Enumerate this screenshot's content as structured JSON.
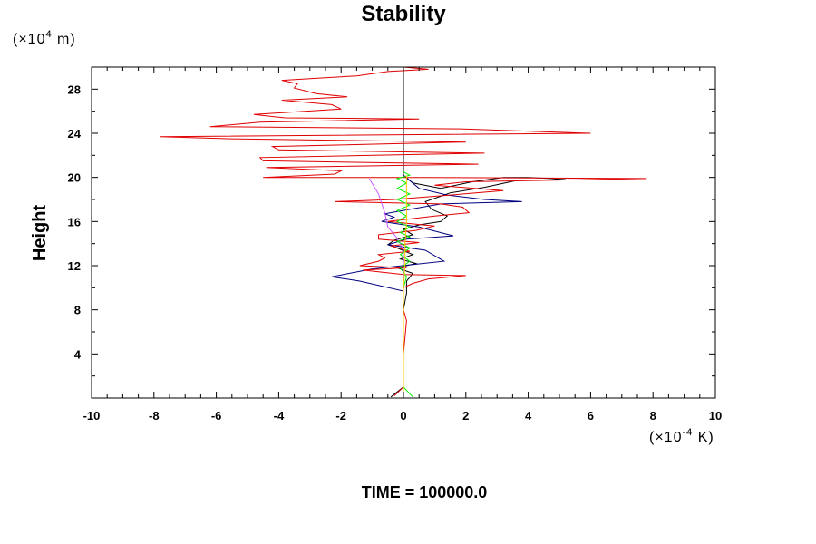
{
  "chart_data": {
    "type": "line",
    "title": "Stability",
    "ylabel": "Height",
    "y_unit_prefix": "(×10",
    "y_unit_exp": "4",
    "y_unit_suffix": " m)",
    "x_unit_prefix": "(×10",
    "x_unit_exp": "-4",
    "x_unit_suffix": " K)",
    "footer": "TIME = 100000.0",
    "xlim": [
      -10,
      10
    ],
    "ylim": [
      0,
      30
    ],
    "x_ticks": [
      -10,
      -8,
      -6,
      -4,
      -2,
      0,
      2,
      4,
      6,
      8,
      10
    ],
    "y_ticks": [
      4,
      8,
      12,
      16,
      20,
      24,
      28
    ],
    "grid": false,
    "series": [
      {
        "color": "#000000",
        "points": [
          [
            0,
            30
          ],
          [
            0,
            20.2
          ],
          [
            0.3,
            19.5
          ],
          [
            1.2,
            19
          ],
          [
            2.2,
            19.6
          ],
          [
            3.2,
            20
          ],
          [
            4.0,
            20
          ],
          [
            4.7,
            19.9
          ],
          [
            5.2,
            19.8
          ],
          [
            3.6,
            19.7
          ],
          [
            2.6,
            19.1
          ],
          [
            1.5,
            18.6
          ],
          [
            0.7,
            17.8
          ],
          [
            0.9,
            17.1
          ],
          [
            1.4,
            16.5
          ],
          [
            1.2,
            16
          ],
          [
            0.5,
            15.7
          ],
          [
            0.0,
            15.3
          ],
          [
            0.3,
            14.8
          ],
          [
            -0.3,
            14.3
          ],
          [
            -0.5,
            13.9
          ],
          [
            -0.2,
            13.6
          ],
          [
            0.3,
            13.0
          ],
          [
            -0.1,
            12.6
          ],
          [
            0.4,
            12.2
          ],
          [
            -0.2,
            11.8
          ],
          [
            0.3,
            11.3
          ],
          [
            0.1,
            10.6
          ],
          [
            0.1,
            9.5
          ],
          [
            0,
            8
          ],
          [
            0,
            4
          ],
          [
            0,
            1
          ],
          [
            -0.4,
            0.1
          ]
        ]
      },
      {
        "color": "#00007f",
        "points": [
          [
            0,
            20.2
          ],
          [
            0.5,
            19
          ],
          [
            1.4,
            18.4
          ],
          [
            2.6,
            18
          ],
          [
            3.8,
            17.8
          ],
          [
            1.2,
            17.6
          ],
          [
            0.2,
            17.1
          ],
          [
            -0.6,
            16.7
          ],
          [
            -0.3,
            16.4
          ],
          [
            -0.7,
            16.0
          ],
          [
            0.5,
            15.5
          ],
          [
            1.6,
            14.7
          ],
          [
            0.1,
            14.4
          ],
          [
            -0.5,
            13.9
          ],
          [
            0.7,
            13.4
          ],
          [
            1.3,
            12.4
          ],
          [
            0.3,
            12.1
          ],
          [
            -1.0,
            11.7
          ],
          [
            -2.3,
            11.0
          ],
          [
            -1.4,
            10.6
          ],
          [
            0,
            9.7
          ],
          [
            0,
            8
          ],
          [
            0,
            4
          ],
          [
            0,
            0.5
          ]
        ]
      },
      {
        "color": "#e00000",
        "points": [
          [
            0,
            30
          ],
          [
            0.8,
            29.8
          ],
          [
            -0.5,
            29.6
          ],
          [
            -1.5,
            29.2
          ],
          [
            -3.9,
            28.8
          ],
          [
            -3.4,
            28.5
          ],
          [
            -3.5,
            28.1
          ],
          [
            -2.8,
            27.6
          ],
          [
            -1.8,
            27.3
          ],
          [
            -3.9,
            27.0
          ],
          [
            -2.3,
            26.6
          ],
          [
            -2.0,
            26.2
          ],
          [
            -4.8,
            25.7
          ],
          [
            -3.8,
            25.4
          ],
          [
            0.5,
            25.3
          ],
          [
            -4.6,
            25.0
          ],
          [
            -6.2,
            24.6
          ],
          [
            1.8,
            24.4
          ],
          [
            6.0,
            24.0
          ],
          [
            -7.8,
            23.7
          ],
          [
            -5.5,
            23.5
          ],
          [
            2.0,
            23.2
          ],
          [
            -4.2,
            22.8
          ],
          [
            -4.0,
            22.5
          ],
          [
            2.6,
            22.2
          ],
          [
            -4.6,
            21.8
          ],
          [
            -4.5,
            21.5
          ],
          [
            2.4,
            21.2
          ],
          [
            -4.4,
            20.9
          ],
          [
            -2.0,
            20.6
          ],
          [
            -2.2,
            20.3
          ],
          [
            -4.5,
            20.0
          ],
          [
            0.8,
            20.0
          ],
          [
            7.8,
            19.9
          ],
          [
            2.0,
            19.6
          ],
          [
            1.0,
            19.3
          ],
          [
            3.2,
            18.8
          ],
          [
            1.5,
            18.4
          ],
          [
            -0.3,
            18.0
          ],
          [
            -2.2,
            17.8
          ],
          [
            1.2,
            17.6
          ],
          [
            1.9,
            17.3
          ],
          [
            2.1,
            16.8
          ],
          [
            1.0,
            16.5
          ],
          [
            -0.5,
            16.0
          ],
          [
            1.0,
            15.6
          ],
          [
            0.4,
            15.2
          ],
          [
            -0.8,
            14.8
          ],
          [
            -0.8,
            14.4
          ],
          [
            0.5,
            14.1
          ],
          [
            -0.4,
            13.8
          ],
          [
            0.2,
            13.3
          ],
          [
            -0.8,
            13.0
          ],
          [
            -0.6,
            12.7
          ],
          [
            -0.8,
            12.4
          ],
          [
            -1.4,
            12.0
          ],
          [
            0.1,
            11.8
          ],
          [
            -1.3,
            11.6
          ],
          [
            0,
            11.2
          ],
          [
            2.0,
            11.1
          ],
          [
            0.8,
            10.8
          ],
          [
            0.3,
            10.4
          ],
          [
            0.0,
            10.0
          ],
          [
            0,
            8
          ],
          [
            0.1,
            7
          ],
          [
            0,
            4
          ],
          [
            0,
            1
          ],
          [
            -0.3,
            0.2
          ]
        ]
      },
      {
        "color": "#cc55ff",
        "points": [
          [
            -1.1,
            19.9
          ],
          [
            -0.8,
            18.5
          ],
          [
            -0.6,
            16.8
          ],
          [
            -0.5,
            15.5
          ],
          [
            -0.2,
            14.5
          ],
          [
            0,
            13.5
          ],
          [
            0,
            12
          ],
          [
            0,
            8
          ],
          [
            0,
            0.5
          ]
        ]
      },
      {
        "color": "#00ee00",
        "points": [
          [
            0,
            20.5
          ],
          [
            0.2,
            20.2
          ],
          [
            -0.2,
            19.9
          ],
          [
            0.1,
            19.5
          ],
          [
            -0.2,
            19.0
          ],
          [
            0.2,
            18.5
          ],
          [
            -0.2,
            18.0
          ],
          [
            0.2,
            17.5
          ],
          [
            -0.2,
            17.0
          ],
          [
            0.1,
            16.5
          ],
          [
            -0.2,
            16.0
          ],
          [
            0.2,
            15.5
          ],
          [
            -0.1,
            15.0
          ],
          [
            0.2,
            14.6
          ],
          [
            -0.2,
            14.2
          ],
          [
            0.2,
            13.6
          ],
          [
            -0.1,
            13.0
          ],
          [
            0.2,
            12.4
          ],
          [
            -0.1,
            11.8
          ],
          [
            0.1,
            11.0
          ],
          [
            0,
            10
          ],
          [
            0,
            8
          ],
          [
            0,
            4
          ],
          [
            0,
            1
          ],
          [
            0.3,
            0.1
          ]
        ]
      },
      {
        "color": "#ffcc00",
        "points": [
          [
            0.1,
            20.2
          ],
          [
            0.1,
            18.0
          ],
          [
            0.1,
            16.0
          ],
          [
            0.05,
            14.0
          ],
          [
            0.05,
            12.0
          ],
          [
            0,
            10
          ],
          [
            0,
            0.3
          ]
        ]
      }
    ]
  }
}
